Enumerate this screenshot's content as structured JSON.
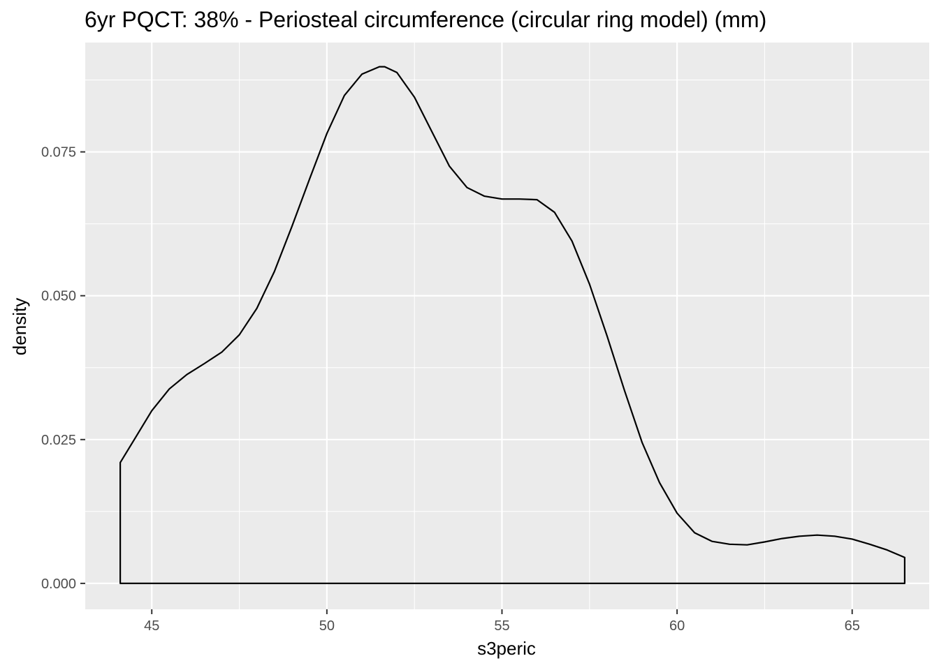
{
  "chart_data": {
    "type": "area",
    "title": "6yr PQCT: 38% - Periosteal circumference (circular ring model) (mm)",
    "xlabel": "s3peric",
    "ylabel": "density",
    "xlim": [
      43.1,
      67.2
    ],
    "ylim": [
      -0.0045,
      0.094
    ],
    "x_ticks": [
      45,
      50,
      55,
      60,
      65
    ],
    "x_tick_labels": [
      "45",
      "50",
      "55",
      "60",
      "65"
    ],
    "y_ticks": [
      0.0,
      0.025,
      0.05,
      0.075
    ],
    "y_tick_labels": [
      "0.000",
      "0.025",
      "0.050",
      "0.075"
    ],
    "grid": true,
    "legend": "none",
    "colors": {
      "panel": "#ebebeb",
      "grid": "#ffffff",
      "line": "#000000",
      "fill": "none"
    },
    "series": [
      {
        "x": [
          44.1,
          44.5,
          45.0,
          45.5,
          46.0,
          46.5,
          47.0,
          47.5,
          48.0,
          48.5,
          49.0,
          49.5,
          50.0,
          50.5,
          51.0,
          51.5,
          51.65,
          52.0,
          52.5,
          53.0,
          53.5,
          54.0,
          54.5,
          55.0,
          55.5,
          56.0,
          56.5,
          57.0,
          57.5,
          58.0,
          58.5,
          59.0,
          59.5,
          60.0,
          60.5,
          61.0,
          61.5,
          62.0,
          62.5,
          63.0,
          63.5,
          64.0,
          64.5,
          65.0,
          65.5,
          66.0,
          66.5
        ],
        "y": [
          0.021,
          0.025,
          0.03,
          0.0338,
          0.0363,
          0.0382,
          0.0402,
          0.0432,
          0.0478,
          0.0542,
          0.062,
          0.0702,
          0.0782,
          0.0848,
          0.0885,
          0.0898,
          0.0898,
          0.0888,
          0.0845,
          0.0785,
          0.0725,
          0.0688,
          0.0673,
          0.0668,
          0.0668,
          0.0667,
          0.0645,
          0.0595,
          0.052,
          0.043,
          0.0335,
          0.0245,
          0.0175,
          0.0122,
          0.0088,
          0.0073,
          0.0068,
          0.0067,
          0.0072,
          0.0078,
          0.0082,
          0.0084,
          0.0082,
          0.0077,
          0.0068,
          0.0058,
          0.0045
        ]
      }
    ]
  }
}
